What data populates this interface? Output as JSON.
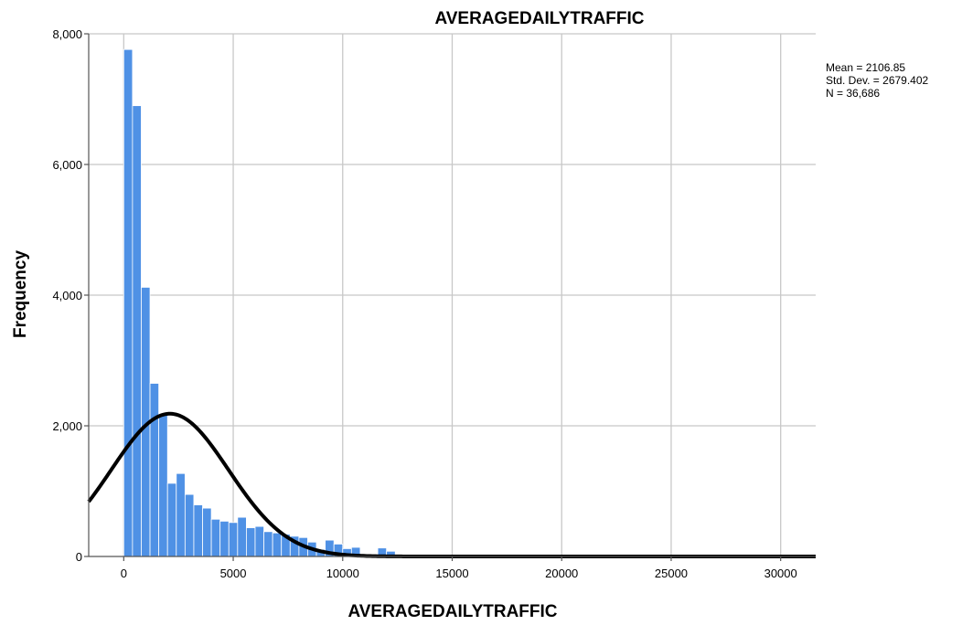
{
  "chart_data": {
    "type": "bar",
    "title": "AVERAGEDAILYTRAFFIC",
    "xlabel": "AVERAGEDAILYTRAFFIC",
    "ylabel": "Frequency",
    "xlim": [
      -1600,
      31600
    ],
    "ylim": [
      0,
      8000
    ],
    "x_ticks": [
      0,
      5000,
      10000,
      15000,
      20000,
      25000,
      30000
    ],
    "x_tick_labels": [
      "0",
      "5000",
      "10000",
      "15000",
      "20000",
      "25000",
      "30000"
    ],
    "y_ticks": [
      0,
      2000,
      4000,
      6000,
      8000
    ],
    "y_tick_labels": [
      "0",
      "2,000",
      "4,000",
      "6,000",
      "8,000"
    ],
    "grid": true,
    "bar_color": "#4f91e5",
    "curve_color": "#000000",
    "bin_start": 0,
    "bin_width": 400,
    "values": [
      7760,
      6900,
      4120,
      2650,
      2170,
      1120,
      1270,
      950,
      790,
      740,
      570,
      540,
      520,
      600,
      440,
      460,
      380,
      360,
      340,
      310,
      290,
      220,
      110,
      250,
      190,
      120,
      140,
      30,
      30,
      130,
      80,
      20,
      15,
      10,
      10,
      20,
      10,
      5,
      5,
      30,
      5,
      5,
      5,
      5,
      5,
      5,
      5,
      5,
      5,
      5
    ],
    "normal_curve": {
      "mean": 2106.85,
      "sd": 2679.402,
      "n": 36686
    },
    "stats": [
      "Mean = 2106.85",
      "Std. Dev. = 2679.402",
      "N = 36,686"
    ]
  }
}
